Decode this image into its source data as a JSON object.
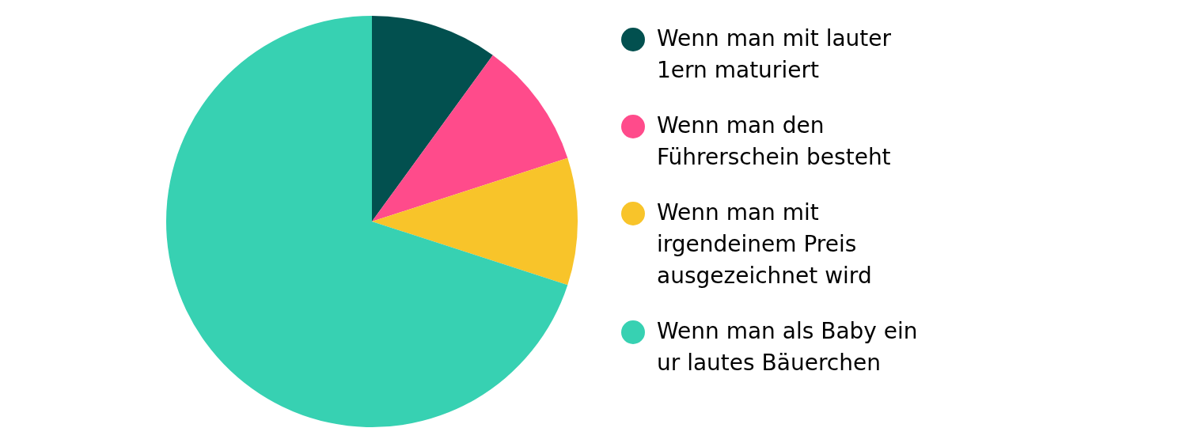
{
  "chart_data": {
    "type": "pie",
    "categories": [
      "Wenn man mit lauter 1ern maturiert",
      "Wenn man den Führerschein besteht",
      "Wenn man mit irgendeinem Preis ausgezeichnet wird",
      "Wenn man als Baby ein ur lautes Bäuerchen"
    ],
    "values": [
      10,
      10,
      10,
      70
    ],
    "colors": [
      "#02504f",
      "#ff4b8b",
      "#f8c42a",
      "#37d1b2"
    ],
    "legend": "right"
  }
}
